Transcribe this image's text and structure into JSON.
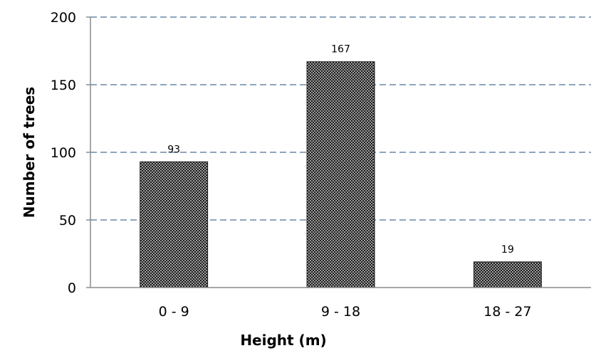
{
  "chart_data": {
    "type": "bar",
    "categories": [
      "0 - 9",
      "9 - 18",
      "18 - 27"
    ],
    "values": [
      93,
      167,
      19
    ],
    "data_labels": [
      "93",
      "167",
      "19"
    ],
    "title": "",
    "xlabel": "Height (m)",
    "ylabel": "Number of trees",
    "ylim": [
      0,
      200
    ],
    "yticks": [
      0,
      50,
      100,
      150,
      200
    ],
    "ytick_labels": [
      "0",
      "50",
      "100",
      "150",
      "200"
    ],
    "grid": true,
    "legend": "none",
    "colors": {
      "bar_dark": "#1a1a1a",
      "bar_light": "#f2f2f2",
      "grid": "#4a6f98",
      "axis": "#8c8c8c"
    }
  }
}
